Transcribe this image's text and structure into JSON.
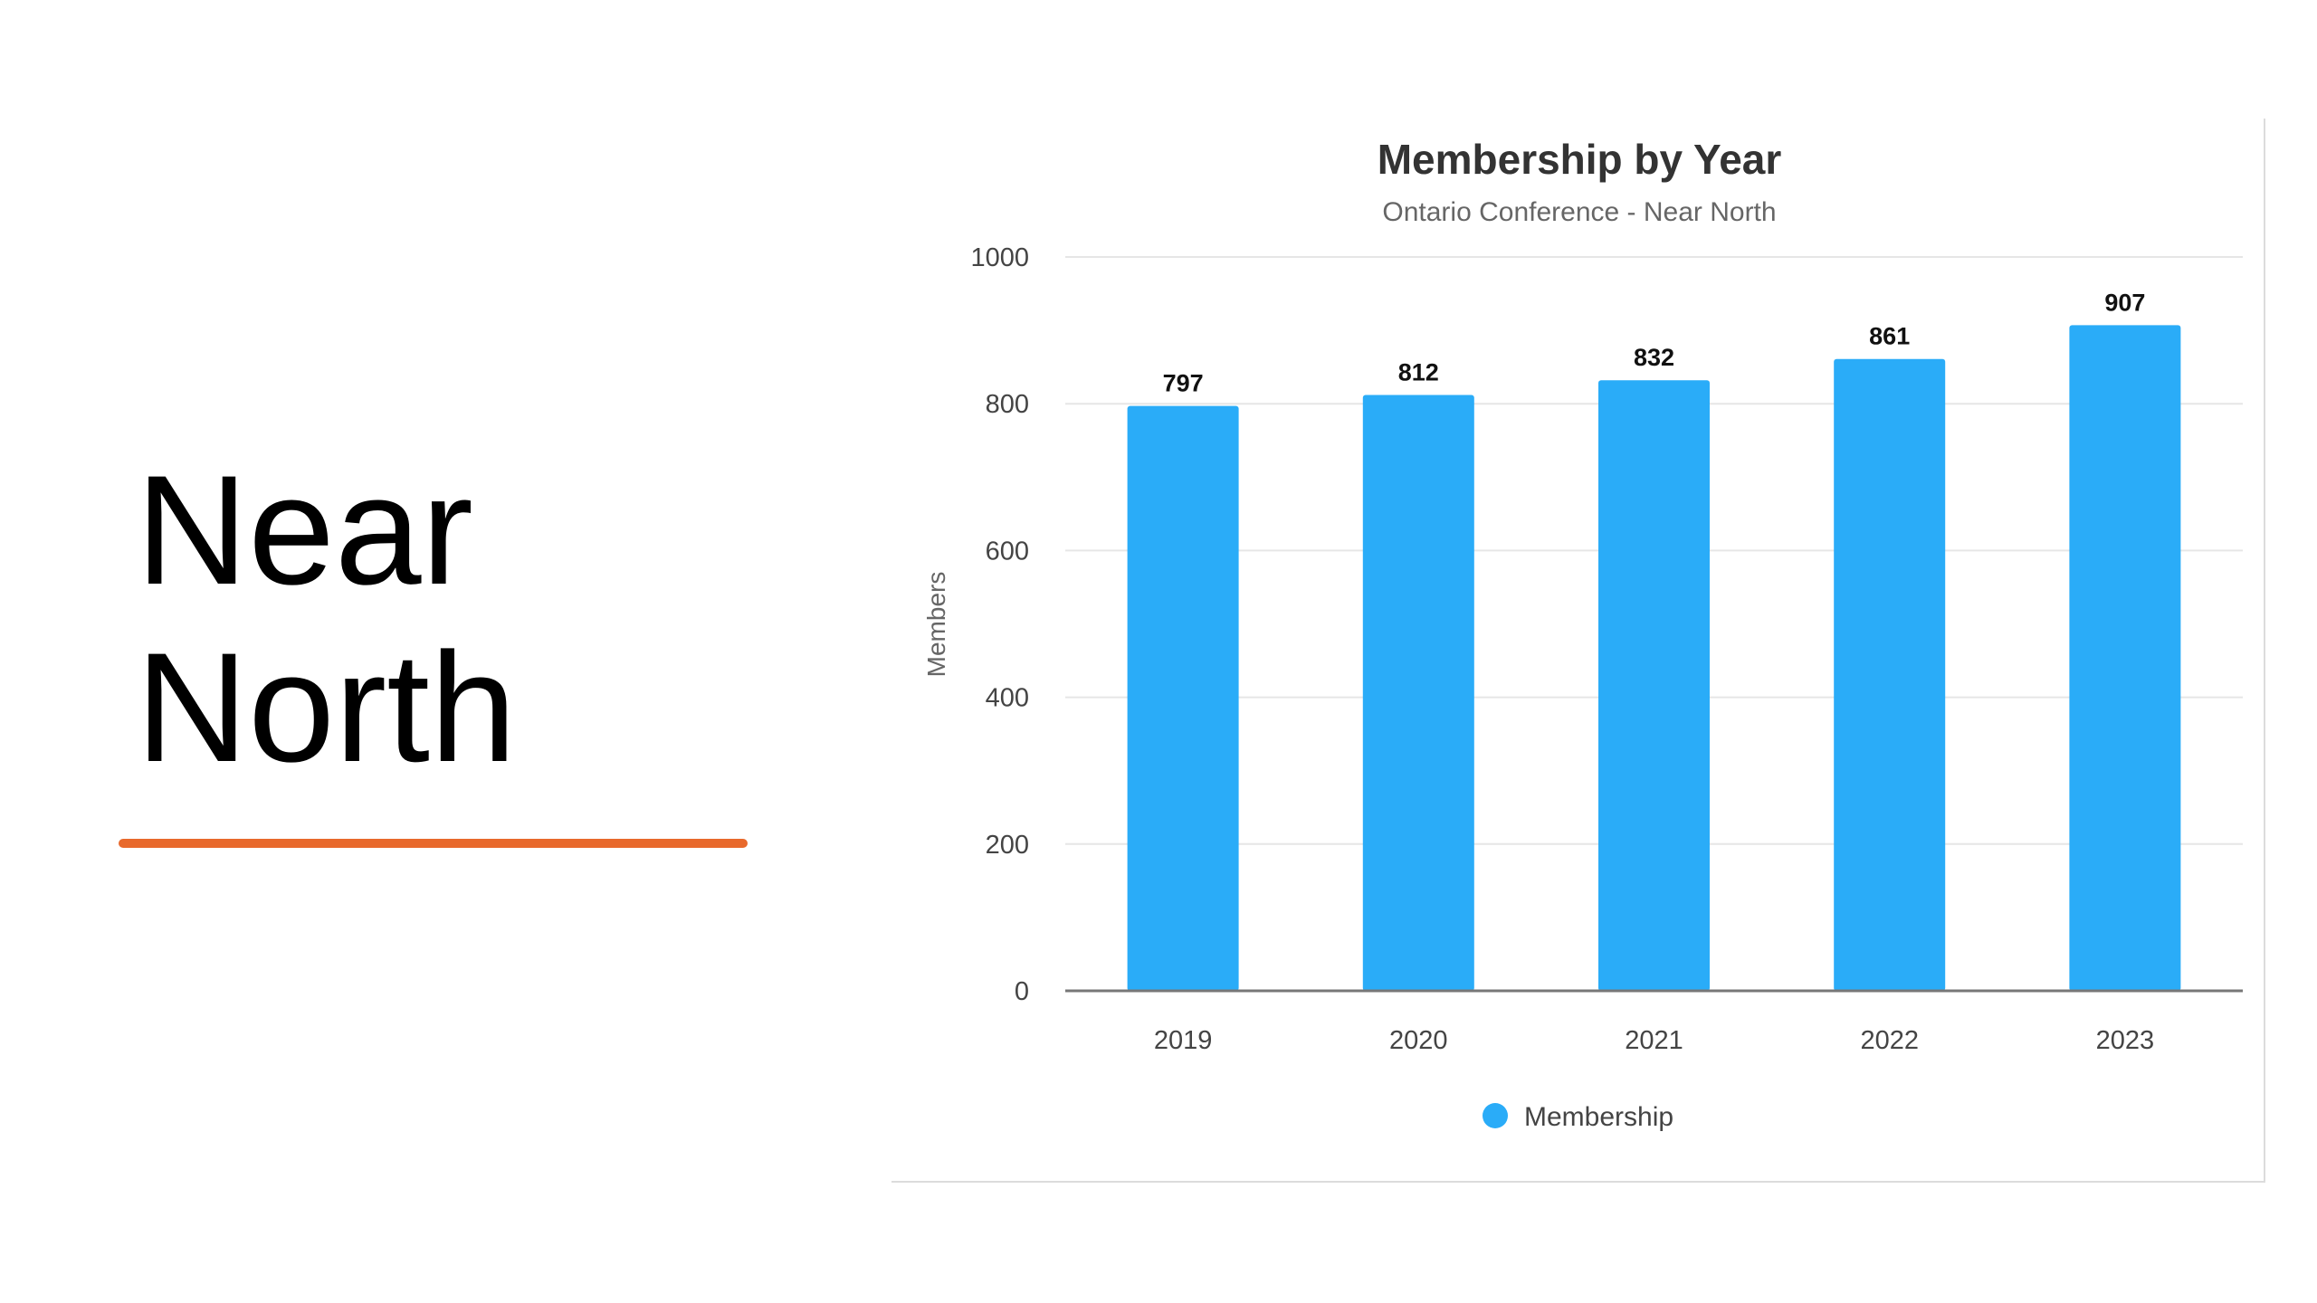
{
  "slide": {
    "heading_line1": "Near",
    "heading_line2": "North",
    "accent_color": "#e8692c"
  },
  "chart_data": {
    "type": "bar",
    "title": "Membership by Year",
    "subtitle": "Ontario Conference - Near North",
    "xlabel": "",
    "ylabel": "Members",
    "categories": [
      "2019",
      "2020",
      "2021",
      "2022",
      "2023"
    ],
    "series": [
      {
        "name": "Membership",
        "values": [
          797,
          812,
          832,
          861,
          907
        ],
        "color": "#2aacf8"
      }
    ],
    "data_labels": [
      "797",
      "812",
      "832",
      "861",
      "907"
    ],
    "ylim": [
      0,
      1000
    ],
    "yticks": [
      0,
      200,
      400,
      600,
      800,
      1000
    ],
    "ytick_labels": [
      "0",
      "200",
      "400",
      "600",
      "800",
      "1000"
    ],
    "grid": true,
    "legend_position": "bottom"
  }
}
